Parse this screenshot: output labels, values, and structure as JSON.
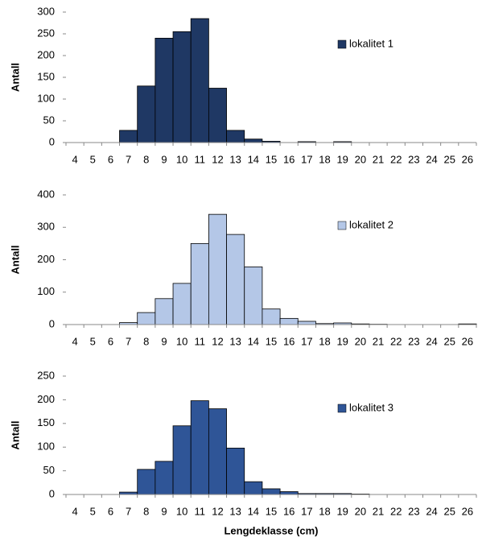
{
  "chart_data": [
    {
      "type": "bar",
      "y_label": "Antall",
      "categories": [
        "4",
        "5",
        "6",
        "7",
        "8",
        "9",
        "10",
        "11",
        "12",
        "13",
        "14",
        "15",
        "16",
        "17",
        "18",
        "19",
        "20",
        "21",
        "22",
        "23",
        "24",
        "25",
        "26"
      ],
      "series": [
        {
          "name": "lokalitet 1",
          "color": "#1f3864",
          "values": [
            0,
            0,
            0,
            28,
            130,
            240,
            255,
            285,
            125,
            28,
            8,
            3,
            0,
            2,
            0,
            2,
            0,
            0,
            0,
            0,
            0,
            0,
            0
          ]
        }
      ],
      "ylim": [
        0,
        300
      ],
      "yticks": [
        0,
        50,
        100,
        150,
        200,
        250,
        300
      ]
    },
    {
      "type": "bar",
      "y_label": "Antall",
      "categories": [
        "4",
        "5",
        "6",
        "7",
        "8",
        "9",
        "10",
        "11",
        "12",
        "13",
        "14",
        "15",
        "16",
        "17",
        "18",
        "19",
        "20",
        "21",
        "22",
        "23",
        "24",
        "25",
        "26"
      ],
      "series": [
        {
          "name": "lokalitet 2",
          "color": "#b4c7e7",
          "values": [
            0,
            0,
            0,
            6,
            37,
            80,
            127,
            250,
            340,
            278,
            178,
            48,
            19,
            10,
            3,
            5,
            2,
            1,
            0,
            0,
            0,
            0,
            2
          ]
        }
      ],
      "ylim": [
        0,
        400
      ],
      "yticks": [
        0,
        100,
        200,
        300,
        400
      ]
    },
    {
      "type": "bar",
      "y_label": "Antall",
      "x_label": "Lengdeklasse (cm)",
      "categories": [
        "4",
        "5",
        "6",
        "7",
        "8",
        "9",
        "10",
        "11",
        "12",
        "13",
        "14",
        "15",
        "16",
        "17",
        "18",
        "19",
        "20",
        "21",
        "22",
        "23",
        "24",
        "25",
        "26"
      ],
      "series": [
        {
          "name": "lokalitet 3",
          "color": "#2f5597",
          "values": [
            0,
            0,
            0,
            5,
            53,
            70,
            145,
            198,
            181,
            98,
            27,
            12,
            6,
            2,
            2,
            2,
            1,
            0,
            0,
            0,
            0,
            0,
            0
          ]
        }
      ],
      "ylim": [
        0,
        250
      ],
      "yticks": [
        0,
        50,
        100,
        150,
        200,
        250
      ]
    }
  ]
}
